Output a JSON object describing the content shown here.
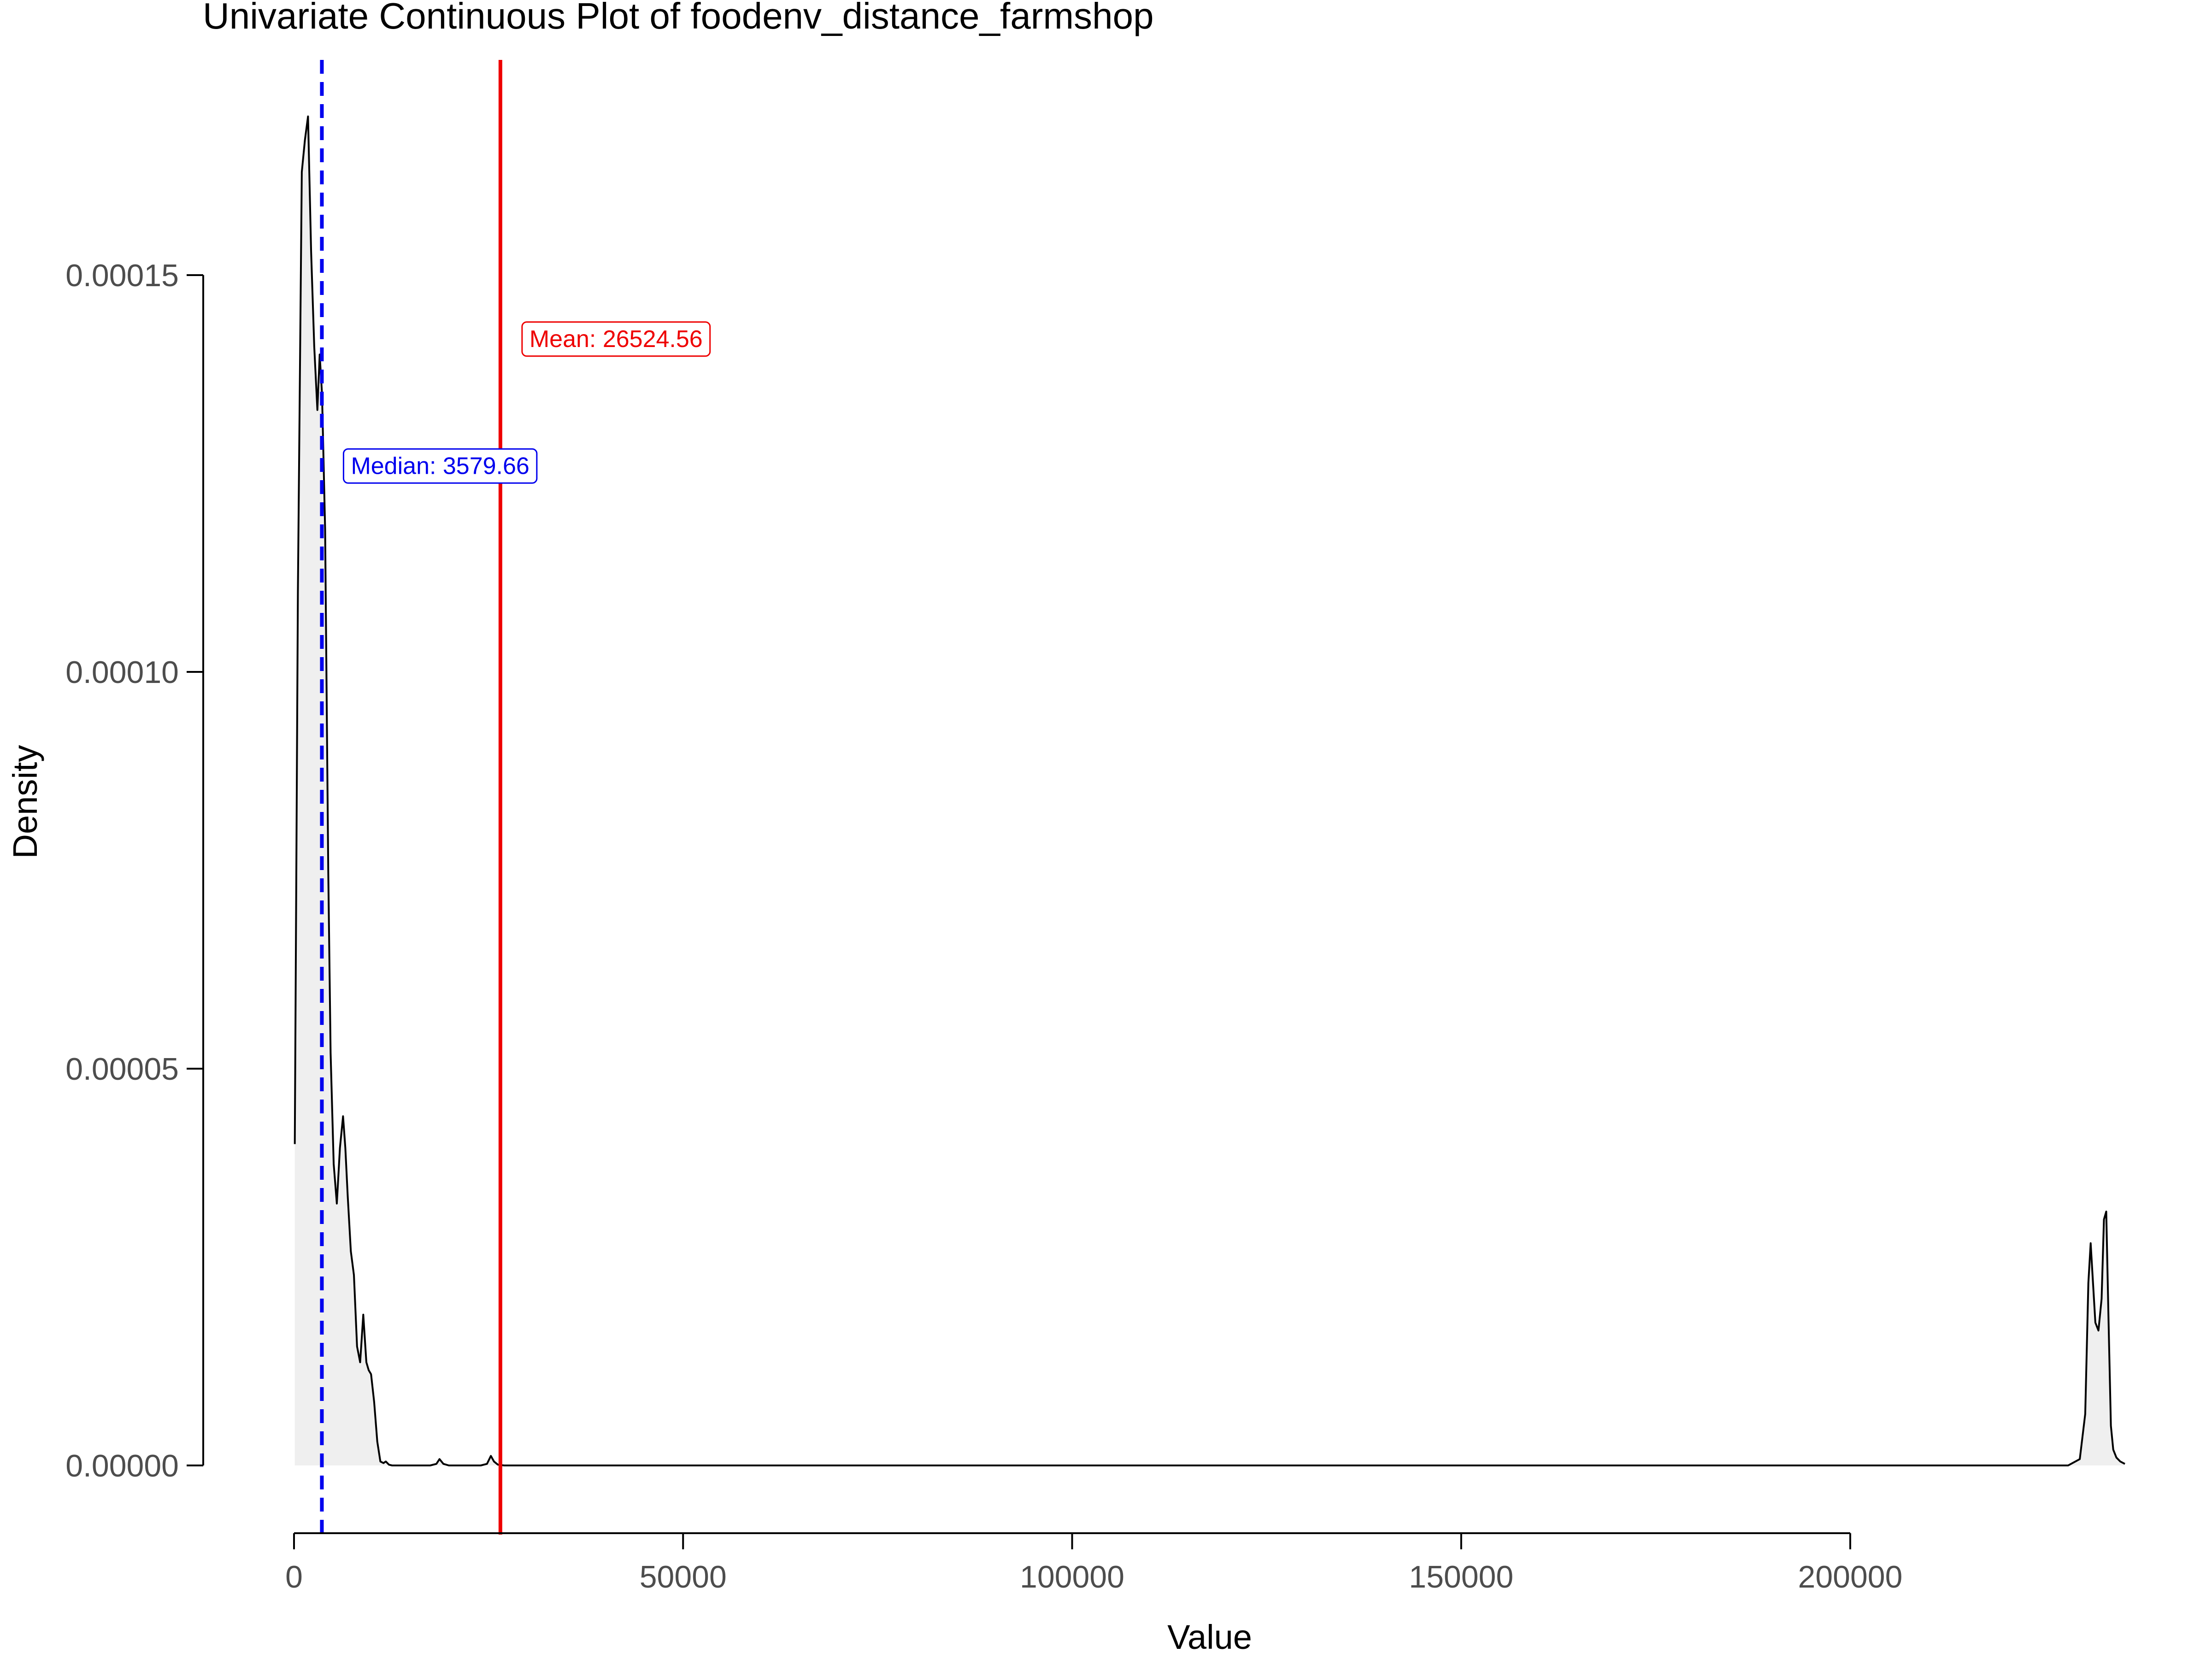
{
  "chart_data": {
    "type": "area",
    "title": "Univariate Continuous Plot of foodenv_distance_farmshop",
    "xlabel": "Value",
    "ylabel": "Density",
    "xlim": [
      0,
      236000
    ],
    "ylim": [
      0,
      0.00017
    ],
    "x_ticks": [
      0,
      50000,
      100000,
      150000,
      200000
    ],
    "x_tick_labels": [
      "0",
      "50000",
      "100000",
      "150000",
      "200000"
    ],
    "y_ticks": [
      0,
      5e-05,
      0.0001,
      0.00015
    ],
    "y_tick_labels": [
      "0.00000",
      "0.00005",
      "0.00010",
      "0.00015"
    ],
    "grid": false,
    "series": [
      {
        "fill": "#efefef",
        "line_color": "#000000",
        "x": [
          100,
          500,
          1000,
          1400,
          1800,
          2200,
          2600,
          3000,
          3300,
          3600,
          4000,
          4400,
          4700,
          5100,
          5500,
          5900,
          6300,
          6600,
          6900,
          7300,
          7700,
          8100,
          8500,
          8900,
          9300,
          9600,
          9900,
          10300,
          10700,
          11100,
          11500,
          11800,
          12200,
          12600,
          13100,
          13600,
          14100,
          14700,
          15500,
          16500,
          17500,
          18300,
          18700,
          19200,
          19900,
          21000,
          22500,
          24000,
          24800,
          25300,
          25700,
          26200,
          27000,
          30000,
          60000,
          100000,
          150000,
          200000,
          228000,
          229500,
          230200,
          230600,
          230900,
          231200,
          231500,
          231900,
          232300,
          232600,
          232900,
          233200,
          233500,
          233800,
          234200,
          234700,
          235300
        ],
        "y": [
          4.05e-05,
          0.00011,
          0.000163,
          0.000167,
          0.00017,
          0.000153,
          0.000141,
          0.000133,
          0.00014,
          0.000135,
          0.000118,
          7.5e-05,
          5.2e-05,
          3.8e-05,
          3.3e-05,
          4e-05,
          4.4e-05,
          4e-05,
          3.4e-05,
          2.7e-05,
          2.4e-05,
          1.5e-05,
          1.3e-05,
          1.9e-05,
          1.3e-05,
          1.2e-05,
          1.15e-05,
          8e-06,
          3e-06,
          5e-07,
          3e-07,
          5e-07,
          1e-07,
          0,
          0,
          0,
          0,
          0,
          0,
          0,
          0,
          2e-07,
          8e-07,
          2e-07,
          0,
          0,
          0,
          0,
          2e-07,
          1.2e-06,
          5e-07,
          1e-07,
          0,
          0,
          0,
          0,
          0,
          0,
          0,
          8e-07,
          6.5e-06,
          2.3e-05,
          2.8e-05,
          2.3e-05,
          1.8e-05,
          1.7e-05,
          2.1e-05,
          3.1e-05,
          3.2e-05,
          1.8e-05,
          5e-06,
          2e-06,
          1e-06,
          5e-07,
          2e-07
        ]
      }
    ],
    "reference_lines": [
      {
        "label": "Median: 3579.66",
        "value": 3579.66,
        "color": "#0000ee",
        "style": "dashed",
        "label_y": 0.000126
      },
      {
        "label": "Mean: 26524.56",
        "value": 26524.56,
        "color": "#ee0000",
        "style": "solid",
        "label_y": 0.000142
      }
    ]
  }
}
